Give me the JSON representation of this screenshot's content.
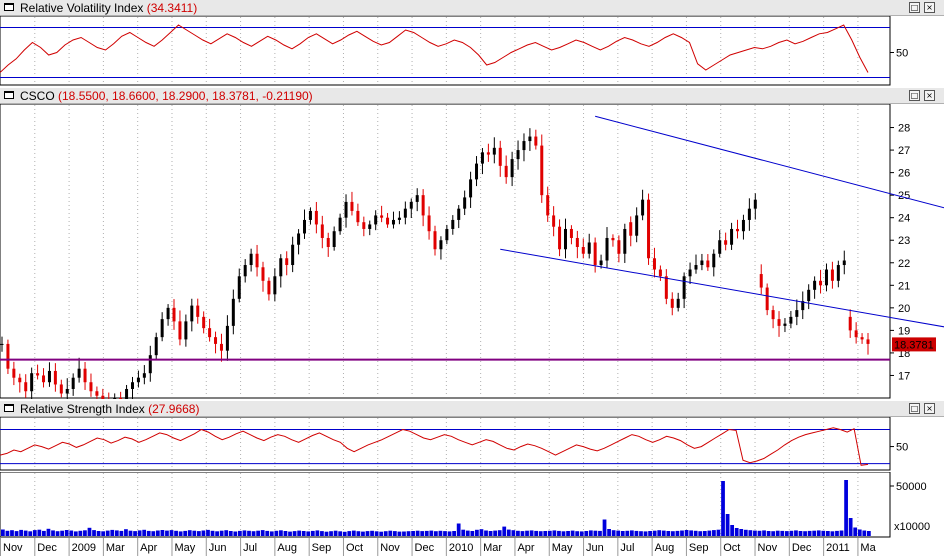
{
  "panes": {
    "rvi": {
      "title": "Relative Volatility Index",
      "value": "(34.3411)"
    },
    "price": {
      "title": "CSCO",
      "value": "(18.5500, 18.6600, 18.2900, 18.3781, -0.21190)",
      "last_label": "18.3781"
    },
    "rsi": {
      "title": "Relative Strength Index",
      "value": "(27.9668)"
    },
    "volume": {
      "multiplier": "x10000"
    }
  },
  "window_buttons": {
    "restore": "□",
    "close": "×"
  },
  "colors": {
    "up_candle": "#000000",
    "down_candle": "#e00000",
    "indicator_line": "#d00000",
    "trend_line": "#0000cc",
    "support_line": "#800080",
    "volume": "#0000dd",
    "grid": "#b0b0b0"
  },
  "chart_data": [
    {
      "type": "line",
      "name": "rvi",
      "ylim": [
        28,
        76
      ],
      "y_ticks": [
        50
      ],
      "levels": [
        30,
        70
      ],
      "series": [
        {
          "values": [
            34,
            40,
            45,
            52,
            58,
            54,
            48,
            50,
            56,
            60,
            62,
            58,
            54,
            52,
            57,
            63,
            66,
            62,
            58,
            55,
            60,
            66,
            72,
            68,
            64,
            60,
            57,
            61,
            65,
            62,
            58,
            55,
            59,
            63,
            60,
            56,
            53,
            57,
            62,
            65,
            61,
            57,
            60,
            64,
            67,
            63,
            59,
            56,
            58,
            63,
            68,
            66,
            62,
            58,
            55,
            57,
            60,
            58,
            54,
            48,
            40,
            42,
            46,
            50,
            53,
            56,
            58,
            55,
            52,
            54,
            57,
            60,
            58,
            55,
            52,
            55,
            59,
            62,
            60,
            57,
            55,
            58,
            62,
            65,
            62,
            58,
            41,
            36,
            40,
            44,
            48,
            50,
            52,
            54,
            53,
            55,
            58,
            60,
            57,
            59,
            62,
            65,
            66,
            69,
            72,
            60,
            46,
            34
          ]
        }
      ]
    },
    {
      "type": "line",
      "name": "price",
      "title": "CSCO",
      "ylim": [
        16,
        29
      ],
      "y_ticks": [
        17,
        18,
        19,
        20,
        21,
        22,
        23,
        24,
        25,
        26,
        27,
        28
      ],
      "x_ticks": [
        "Nov",
        "Dec",
        "2009",
        "Mar",
        "Apr",
        "May",
        "Jun",
        "Jul",
        "Aug",
        "Sep",
        "Oct",
        "Nov",
        "Dec",
        "2010",
        "Mar",
        "Apr",
        "May",
        "Jun",
        "Jul",
        "Aug",
        "Sep",
        "Oct",
        "Nov",
        "Dec",
        "2011",
        "Ma"
      ],
      "levels": [
        17.7
      ],
      "trendlines": [
        {
          "from": {
            "x": 84,
            "y": 22.6
          },
          "to": {
            "x": 184,
            "y": 18.0
          }
        },
        {
          "from": {
            "x": 100,
            "y": 28.5
          },
          "to": {
            "x": 184,
            "y": 22.7
          }
        }
      ],
      "series": [
        {
          "values": [
            18.4,
            17.3,
            16.9,
            16.7,
            16.3,
            17.1,
            17.0,
            16.7,
            17.2,
            16.6,
            16.2,
            16.4,
            16.9,
            17.3,
            16.7,
            16.3,
            16.1,
            15.9,
            15.7,
            16.0,
            15.8,
            16.4,
            16.7,
            16.9,
            17.1,
            17.9,
            18.7,
            19.5,
            20.0,
            19.4,
            18.6,
            19.4,
            20.1,
            19.6,
            19.1,
            18.7,
            18.4,
            18.1,
            19.2,
            20.4,
            21.4,
            21.9,
            22.4,
            21.8,
            21.2,
            20.6,
            21.4,
            22.2,
            21.9,
            22.8,
            23.3,
            23.9,
            24.3,
            23.7,
            23.1,
            22.7,
            23.4,
            24.0,
            24.7,
            24.3,
            23.8,
            23.5,
            23.7,
            24.1,
            24.0,
            23.7,
            23.9,
            24.0,
            24.4,
            24.7,
            25.0,
            24.1,
            23.4,
            22.6,
            23.0,
            23.5,
            23.9,
            24.4,
            24.9,
            25.7,
            26.4,
            26.9,
            26.8,
            27.1,
            26.3,
            25.8,
            26.6,
            27.0,
            27.4,
            27.6,
            27.2,
            25.0,
            24.1,
            23.6,
            22.6,
            23.5,
            23.1,
            22.7,
            22.4,
            22.9,
            21.9,
            22.1,
            23.1,
            23.0,
            22.4,
            23.5,
            23.2,
            24.1,
            24.8,
            22.2,
            21.7,
            21.4,
            20.4,
            20.0,
            20.4,
            21.4,
            21.7,
            21.9,
            22.1,
            21.8,
            22.4,
            23.0,
            22.8,
            23.5,
            23.4,
            23.9,
            24.4,
            24.8,
            20.9,
            19.9,
            19.5,
            19.2,
            19.3,
            19.6,
            19.9,
            20.3,
            20.8,
            21.2,
            21.0,
            21.7,
            21.2,
            21.9,
            22.1,
            19.0,
            18.7,
            18.6,
            18.4
          ]
        }
      ],
      "last_value": 18.3781
    },
    {
      "type": "line",
      "name": "rsi",
      "ylim": [
        26,
        80
      ],
      "y_ticks": [
        50
      ],
      "levels": [
        30,
        70
      ],
      "series": [
        {
          "values": [
            40,
            42,
            46,
            44,
            48,
            52,
            50,
            47,
            51,
            55,
            53,
            49,
            52,
            56,
            60,
            58,
            54,
            57,
            61,
            59,
            55,
            58,
            62,
            66,
            64,
            60,
            57,
            61,
            65,
            70,
            67,
            62,
            58,
            61,
            65,
            68,
            64,
            60,
            57,
            61,
            64,
            62,
            58,
            55,
            59,
            63,
            66,
            62,
            58,
            55,
            48,
            44,
            48,
            52,
            55,
            58,
            62,
            66,
            70,
            68,
            64,
            60,
            58,
            61,
            64,
            62,
            58,
            55,
            52,
            55,
            58,
            56,
            52,
            48,
            46,
            50,
            53,
            51,
            48,
            44,
            40,
            44,
            48,
            52,
            50,
            47,
            45,
            48,
            52,
            56,
            60,
            64,
            62,
            58,
            55,
            58,
            62,
            60,
            57,
            52,
            48,
            50,
            55,
            60,
            65,
            70,
            69,
            34,
            31,
            33,
            36,
            41,
            46,
            52,
            57,
            61,
            64,
            66,
            68,
            70,
            72,
            70,
            67,
            71,
            28,
            29
          ]
        }
      ]
    },
    {
      "type": "bar",
      "name": "volume",
      "ylim": [
        0,
        62000
      ],
      "y_ticks": [
        50000
      ],
      "series": [
        {
          "values": [
            6500,
            5200,
            5800,
            4900,
            6100,
            5400,
            4700,
            5900,
            6300,
            5100,
            7200,
            5600,
            4800,
            5300,
            6000,
            5500,
            4600,
            5200,
            5700,
            8200,
            5900,
            5000,
            4700,
            5400,
            6100,
            5600,
            5100,
            6800,
            5300,
            4900,
            5600,
            6200,
            5100,
            4800,
            5500,
            6000,
            5400,
            5900,
            5200,
            4600,
            5100,
            5800,
            5300,
            4900,
            5500,
            6100,
            5200,
            4700,
            5300,
            5800,
            5000,
            4500,
            5100,
            5600,
            5200,
            4800,
            5300,
            5900,
            5100,
            4600,
            5200,
            5700,
            5000,
            4400,
            4900,
            5400,
            5000,
            4600,
            5100,
            5600,
            4900,
            4300,
            4800,
            5300,
            4700,
            4200,
            4900,
            5400,
            4800,
            4400,
            4900,
            5200,
            4700,
            4300,
            4800,
            5300,
            4900,
            4400,
            4500,
            4800,
            5000,
            5300,
            4900,
            5100,
            5400,
            4800,
            5200,
            4900,
            4600,
            5000,
            12500,
            6300,
            5400,
            5000,
            6200,
            6800,
            5500,
            5000,
            5400,
            5800,
            9400,
            6400,
            5800,
            5200,
            4900,
            5300,
            5600,
            5100,
            4800,
            5000,
            5200,
            5600,
            5100,
            4700,
            5000,
            5400,
            4800,
            4600,
            5000,
            5600,
            5300,
            5100,
            16500,
            7000,
            5800,
            5400,
            5000,
            5200,
            5600,
            5100,
            4800,
            4600,
            5000,
            5300,
            5800,
            5400,
            5000,
            4800,
            5100,
            5500,
            6000,
            5600,
            5200,
            4800,
            5000,
            5400,
            5900,
            6300,
            55000,
            22000,
            11000,
            8000,
            7000,
            6200,
            5800,
            5400,
            5200,
            5600,
            5000,
            4800,
            5300,
            5100,
            4900,
            5200,
            5600,
            5000,
            4800,
            5100,
            5300,
            5600,
            5200,
            5000,
            4700,
            5100,
            5500,
            56000,
            18000,
            8500,
            6500,
            5500,
            5000
          ]
        }
      ]
    }
  ]
}
